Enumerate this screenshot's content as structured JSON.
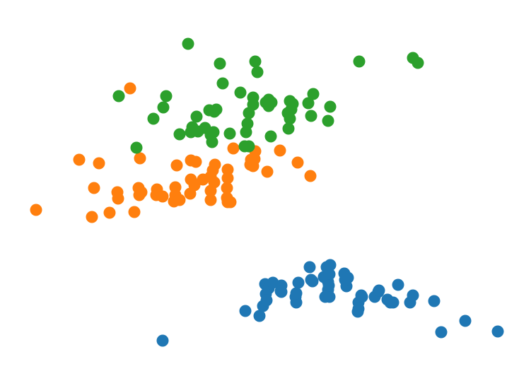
{
  "chart_data": {
    "type": "scatter",
    "title": "",
    "xlabel": "",
    "ylabel": "",
    "axes_visible": false,
    "grid": false,
    "legend": "none",
    "xlim": [
      0,
      7.34
    ],
    "ylim": [
      0,
      5.32
    ],
    "series": [
      {
        "color": "#1f77b4",
        "points": [
          [
            2.3,
            0.5
          ],
          [
            3.47,
            0.92
          ],
          [
            3.67,
            0.85
          ],
          [
            3.72,
            0.99
          ],
          [
            3.75,
            1.3
          ],
          [
            3.8,
            1.24
          ],
          [
            3.76,
            1.16
          ],
          [
            3.86,
            1.32
          ],
          [
            3.98,
            1.28
          ],
          [
            3.98,
            1.19
          ],
          [
            4.18,
            1.12
          ],
          [
            4.19,
            1.04
          ],
          [
            4.22,
            1.32
          ],
          [
            4.38,
            1.54
          ],
          [
            4.42,
            1.34
          ],
          [
            4.58,
            1.4
          ],
          [
            4.62,
            1.54
          ],
          [
            4.66,
            1.44
          ],
          [
            4.64,
            1.33
          ],
          [
            4.64,
            1.22
          ],
          [
            4.6,
            1.12
          ],
          [
            4.87,
            1.45
          ],
          [
            4.92,
            1.39
          ],
          [
            4.9,
            1.27
          ],
          [
            5.12,
            1.12
          ],
          [
            5.07,
            1.04
          ],
          [
            5.06,
            0.91
          ],
          [
            5.11,
            1.14
          ],
          [
            5.3,
            1.12
          ],
          [
            5.35,
            1.19
          ],
          [
            5.48,
            1.08
          ],
          [
            5.56,
            1.04
          ],
          [
            5.63,
            1.29
          ],
          [
            5.8,
            1.04
          ],
          [
            5.84,
            1.14
          ],
          [
            6.14,
            1.06
          ],
          [
            6.24,
            0.62
          ],
          [
            6.58,
            0.78
          ],
          [
            7.04,
            0.63
          ],
          [
            4.67,
            1.57
          ],
          [
            4.66,
            1.12
          ],
          [
            4.19,
            1.17
          ],
          [
            3.97,
            1.2
          ],
          [
            3.77,
            1.07
          ],
          [
            4.4,
            1.36
          ],
          [
            4.65,
            1.28
          ],
          [
            5.36,
            1.21
          ],
          [
            5.52,
            1.04
          ],
          [
            5.07,
            0.95
          ],
          [
            4.88,
            1.36
          ]
        ]
      },
      {
        "color": "#ff7f0e",
        "points": [
          [
            1.84,
            4.07
          ],
          [
            1.12,
            3.06
          ],
          [
            1.4,
            3.01
          ],
          [
            1.98,
            3.08
          ],
          [
            2.5,
            2.98
          ],
          [
            2.7,
            3.05
          ],
          [
            2.77,
            3.03
          ],
          [
            3.3,
            3.22
          ],
          [
            3.61,
            3.18
          ],
          [
            3.55,
            3.06
          ],
          [
            3.58,
            2.97
          ],
          [
            3.78,
            2.89
          ],
          [
            3.96,
            3.19
          ],
          [
            4.21,
            3.02
          ],
          [
            4.39,
            2.83
          ],
          [
            3.04,
            2.99
          ],
          [
            3.01,
            2.91
          ],
          [
            2.98,
            2.82
          ],
          [
            3.03,
            2.74
          ],
          [
            2.98,
            2.62
          ],
          [
            2.98,
            2.49
          ],
          [
            3.22,
            2.92
          ],
          [
            3.22,
            2.8
          ],
          [
            3.21,
            2.66
          ],
          [
            3.21,
            2.52
          ],
          [
            3.22,
            2.46
          ],
          [
            2.7,
            2.78
          ],
          [
            2.75,
            2.7
          ],
          [
            2.69,
            2.58
          ],
          [
            2.48,
            2.67
          ],
          [
            2.48,
            2.56
          ],
          [
            2.46,
            2.47
          ],
          [
            2.54,
            2.49
          ],
          [
            2.22,
            2.64
          ],
          [
            2.21,
            2.56
          ],
          [
            1.96,
            2.66
          ],
          [
            1.97,
            2.56
          ],
          [
            1.66,
            2.6
          ],
          [
            1.67,
            2.51
          ],
          [
            1.33,
            2.66
          ],
          [
            0.51,
            2.35
          ],
          [
            1.3,
            2.25
          ],
          [
            1.55,
            2.31
          ],
          [
            1.9,
            2.32
          ],
          [
            2.3,
            2.54
          ],
          [
            2.0,
            2.6
          ],
          [
            2.87,
            2.78
          ],
          [
            3.26,
            2.46
          ],
          [
            3.6,
            3.07
          ],
          [
            3.54,
            2.99
          ]
        ]
      },
      {
        "color": "#2ca02c",
        "points": [
          [
            2.66,
            4.7
          ],
          [
            3.11,
            4.42
          ],
          [
            3.61,
            4.45
          ],
          [
            3.64,
            4.3
          ],
          [
            3.15,
            4.14
          ],
          [
            5.08,
            4.45
          ],
          [
            5.84,
            4.5
          ],
          [
            5.91,
            4.43
          ],
          [
            1.68,
            3.96
          ],
          [
            2.35,
            3.96
          ],
          [
            2.31,
            3.8
          ],
          [
            2.17,
            3.64
          ],
          [
            1.93,
            3.23
          ],
          [
            2.78,
            3.67
          ],
          [
            2.96,
            3.76
          ],
          [
            3.06,
            3.77
          ],
          [
            3.03,
            3.74
          ],
          [
            3.4,
            4.01
          ],
          [
            3.58,
            3.94
          ],
          [
            3.58,
            3.84
          ],
          [
            3.52,
            3.72
          ],
          [
            3.5,
            3.57
          ],
          [
            3.48,
            3.45
          ],
          [
            3.46,
            3.25
          ],
          [
            3.52,
            3.25
          ],
          [
            3.8,
            3.91
          ],
          [
            3.8,
            3.82
          ],
          [
            3.84,
            3.87
          ],
          [
            4.1,
            3.89
          ],
          [
            4.14,
            3.85
          ],
          [
            4.07,
            3.72
          ],
          [
            4.1,
            3.64
          ],
          [
            4.08,
            3.5
          ],
          [
            3.83,
            3.39
          ],
          [
            4.36,
            3.86
          ],
          [
            4.43,
            3.99
          ],
          [
            4.67,
            3.81
          ],
          [
            4.64,
            3.61
          ],
          [
            4.4,
            3.68
          ],
          [
            3.25,
            3.43
          ],
          [
            2.8,
            3.46
          ],
          [
            2.72,
            3.52
          ],
          [
            2.7,
            3.45
          ],
          [
            2.54,
            3.42
          ],
          [
            2.9,
            3.51
          ],
          [
            2.98,
            3.41
          ],
          [
            3.0,
            3.31
          ],
          [
            3.02,
            3.45
          ],
          [
            3.76,
            3.87
          ],
          [
            4.12,
            3.77
          ]
        ]
      }
    ]
  }
}
